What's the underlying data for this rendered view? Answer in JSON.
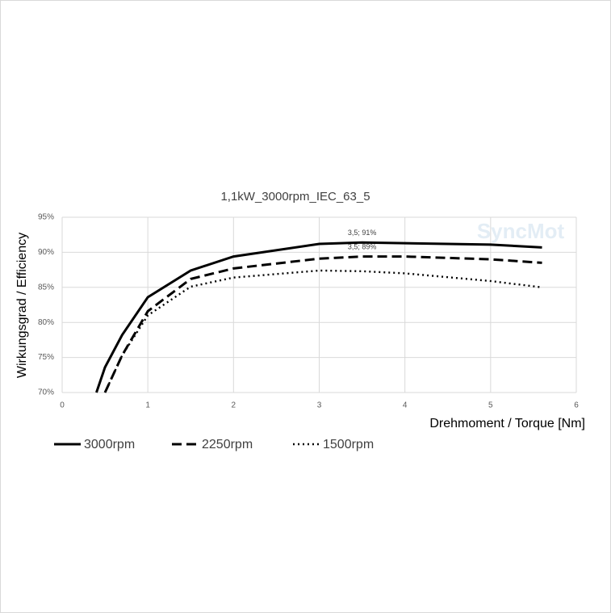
{
  "chart_data": {
    "type": "line",
    "title": "1,1kW_3000rpm_IEC_63_5",
    "watermark": "SyncMot",
    "x_label": "Drehmoment / Torque [Nm]",
    "y_label": "Wirkungsgrad / Efficiency",
    "xlim": [
      0,
      6
    ],
    "xticks": [
      0,
      1,
      2,
      3,
      4,
      5,
      6
    ],
    "ylim": [
      70,
      95
    ],
    "yticks": [
      {
        "value": 70,
        "label": "70%"
      },
      {
        "value": 75,
        "label": "75%"
      },
      {
        "value": 80,
        "label": "80%"
      },
      {
        "value": 85,
        "label": "85%"
      },
      {
        "value": 90,
        "label": "90%"
      },
      {
        "value": 95,
        "label": "95%"
      }
    ],
    "grid": true,
    "legend": "bottom-left",
    "series": [
      {
        "name": "3000rpm",
        "color": "#000000",
        "dash": "solid",
        "x": [
          0.4,
          0.5,
          0.7,
          1.0,
          1.5,
          2,
          3,
          3.5,
          4,
          5,
          5.6
        ],
        "values": [
          70,
          73.6,
          78.2,
          83.6,
          87.4,
          89.4,
          91.2,
          91.4,
          91.3,
          91.1,
          90.7
        ]
      },
      {
        "name": "2250rpm",
        "color": "#000000",
        "dash": "dashed",
        "x": [
          0.5,
          0.7,
          1.0,
          1.5,
          2,
          3,
          3.5,
          4,
          5,
          5.6
        ],
        "values": [
          70,
          75.3,
          81.6,
          86.2,
          87.7,
          89.1,
          89.4,
          89.4,
          89.0,
          88.5
        ]
      },
      {
        "name": "1500rpm",
        "color": "#000000",
        "dash": "dotted",
        "x": [
          0.5,
          0.7,
          1.0,
          1.5,
          2,
          3,
          3.5,
          4,
          5,
          5.6
        ],
        "values": [
          70,
          75.3,
          81.0,
          85.1,
          86.4,
          87.4,
          87.3,
          87.0,
          85.9,
          85.0
        ]
      }
    ],
    "annotations": [
      {
        "text": "3,5; 91%",
        "x": 3.5,
        "y": 91
      },
      {
        "text": "3,5; 89%",
        "x": 3.5,
        "y": 89
      }
    ]
  }
}
